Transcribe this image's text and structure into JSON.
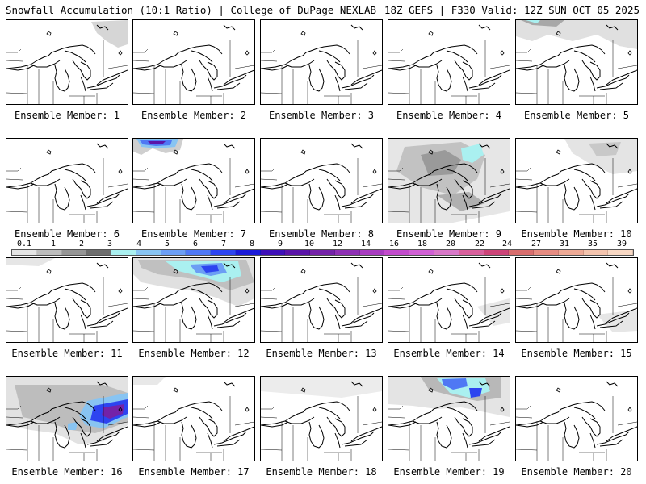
{
  "header": {
    "title_left": "Snowfall Accumulation (10:1 Ratio) | College of DuPage NEXLAB",
    "title_right": "18Z GEFS | F330 Valid: 12Z SUN OCT 05 2025"
  },
  "colorbar": {
    "labels": [
      "0.1",
      "1",
      "2",
      "3",
      "4",
      "5",
      "6",
      "7",
      "8",
      "9",
      "10",
      "12",
      "14",
      "16",
      "18",
      "20",
      "22",
      "24",
      "27",
      "31",
      "35",
      "39"
    ],
    "colors": [
      "#e4e4e4",
      "#bdbdbd",
      "#969696",
      "#6e6e6e",
      "#aaf0f0",
      "#88c4f2",
      "#6c9ef4",
      "#4f78f4",
      "#2d44f0",
      "#1a1ad8",
      "#3e10b8",
      "#5a14a8",
      "#7422a8",
      "#8e30b4",
      "#a83cc0",
      "#c24ccc",
      "#d060d4",
      "#d878c8",
      "#d8609c",
      "#cc4478",
      "#d86e6e",
      "#e68c82",
      "#eeaa96",
      "#f4c4ae",
      "#f8d8c4"
    ]
  },
  "members": [
    {
      "label": "Ensemble Member: 1"
    },
    {
      "label": "Ensemble Member: 2"
    },
    {
      "label": "Ensemble Member: 3"
    },
    {
      "label": "Ensemble Member: 4"
    },
    {
      "label": "Ensemble Member: 5"
    },
    {
      "label": "Ensemble Member: 6"
    },
    {
      "label": "Ensemble Member: 7"
    },
    {
      "label": "Ensemble Member: 8"
    },
    {
      "label": "Ensemble Member: 9"
    },
    {
      "label": "Ensemble Member: 10"
    },
    {
      "label": "Ensemble Member: 11"
    },
    {
      "label": "Ensemble Member: 12"
    },
    {
      "label": "Ensemble Member: 13"
    },
    {
      "label": "Ensemble Member: 14"
    },
    {
      "label": "Ensemble Member: 15"
    },
    {
      "label": "Ensemble Member: 16"
    },
    {
      "label": "Ensemble Member: 17"
    },
    {
      "label": "Ensemble Member: 18"
    },
    {
      "label": "Ensemble Member: 19"
    },
    {
      "label": "Ensemble Member: 20"
    }
  ]
}
